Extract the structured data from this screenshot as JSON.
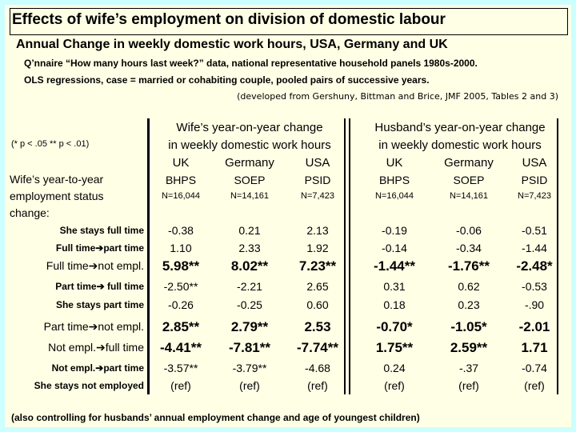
{
  "header": {
    "title": "Effects of wife’s employment on division of domestic labour",
    "subtitle": "Annual Change in weekly domestic  work hours, USA, Germany and UK",
    "notes": [
      "Q’nnaire “How many hours last week?” data, national representative household panels 1980s-2000.",
      "OLS regressions, case = married or cohabiting couple, pooled pairs of successive years."
    ],
    "source": "(developed from Gershuny, Bittman and Brice,  JMF 2005, Tables 2 and 3)"
  },
  "table": {
    "significance": "(*  p < .05   ** p < .01)",
    "row_header": [
      "Wife’s year-to-year",
      "employment status",
      "change:"
    ],
    "groups": [
      {
        "title": [
          "Wife’s year-on-year change",
          "in weekly domestic work hours"
        ],
        "columns": [
          {
            "country": "UK",
            "survey": "BHPS",
            "n": "N=16,044"
          },
          {
            "country": "Germany",
            "survey": "SOEP",
            "n": "N=14,161"
          },
          {
            "country": "USA",
            "survey": "PSID",
            "n": "N=7,423"
          }
        ]
      },
      {
        "title": [
          "Husband’s year-on-year change",
          "in weekly domestic work hours"
        ],
        "columns": [
          {
            "country": "UK",
            "survey": "BHPS",
            "n": "N=16,044"
          },
          {
            "country": "Germany",
            "survey": "SOEP",
            "n": "N=14,161"
          },
          {
            "country": "USA",
            "survey": "PSID",
            "n": "N=7,423"
          }
        ]
      }
    ],
    "rows": [
      {
        "label": "She stays full time",
        "values": [
          "-0.38",
          "0.21",
          "2.13",
          "-0.19",
          "-0.06",
          "-0.51"
        ]
      },
      {
        "label": "Full time➔part time",
        "values": [
          "1.10",
          "2.33",
          "1.92",
          "-0.14",
          "-0.34",
          "-1.44"
        ]
      },
      {
        "label": "Full time➔not empl.",
        "values": [
          "5.98**",
          "8.02**",
          "7.23**",
          "-1.44**",
          "-1.76**",
          "-2.48*"
        ]
      },
      {
        "label": "Part time➔ full time",
        "values": [
          "-2.50**",
          "-2.21",
          "2.65",
          "0.31",
          "0.62",
          "-0.53"
        ]
      },
      {
        "label": "She stays part time",
        "values": [
          "-0.26",
          "-0.25",
          "0.60",
          "0.18",
          "0.23",
          "-.90"
        ]
      },
      {
        "label": "Part time➔not empl.",
        "values": [
          "2.85**",
          "2.79**",
          "2.53",
          "-0.70*",
          "-1.05*",
          "-2.01"
        ]
      },
      {
        "label": "Not empl.➔full time",
        "values": [
          "-4.41**",
          "-7.81**",
          "-7.74**",
          "1.75**",
          "2.59**",
          "1.71"
        ]
      },
      {
        "label": "Not empl.➔part time",
        "values": [
          "-3.57**",
          "-3.79**",
          "-4.68",
          "0.24",
          "-.37",
          "-0.74"
        ]
      },
      {
        "label": "She stays not employed",
        "values": [
          "(ref)",
          "(ref)",
          "(ref)",
          "(ref)",
          "(ref)",
          "(ref)"
        ]
      }
    ]
  },
  "footer": "(also controlling for husbands’ annual employment change and age of youngest children)"
}
